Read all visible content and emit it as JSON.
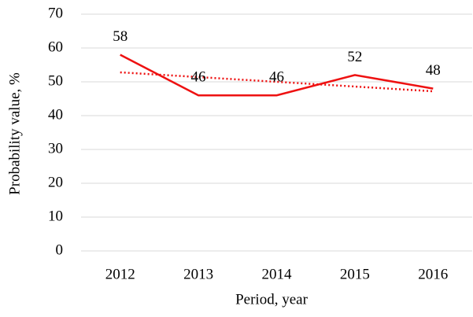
{
  "chart_data": {
    "type": "line",
    "x_label": "Period, year",
    "y_label": "Probability value, %",
    "categories": [
      "2012",
      "2013",
      "2014",
      "2015",
      "2016"
    ],
    "values": [
      58,
      46,
      46,
      52,
      48
    ],
    "color": "#ee1111",
    "data_labels": true,
    "trendline": "linear",
    "ylim": [
      0,
      70
    ],
    "yticks": [
      0,
      10,
      20,
      30,
      40,
      50,
      60,
      70
    ],
    "grid": true
  }
}
